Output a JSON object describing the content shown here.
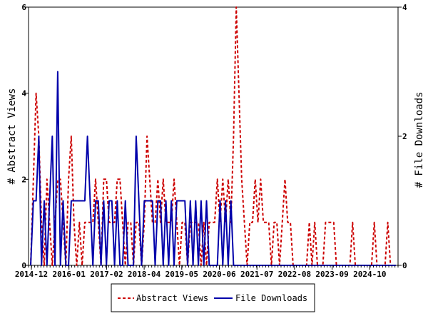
{
  "chart_data": {
    "type": "line",
    "y_left_label": "# Abstract Views",
    "y_right_label": "# File Downloads",
    "ylim_left": [
      0,
      6
    ],
    "ylim_right": [
      0,
      4
    ],
    "y_left_ticks": [
      "0",
      "2",
      "4",
      "6"
    ],
    "y_right_ticks": [
      "0",
      "2",
      "4"
    ],
    "x_tick_labels": [
      "2014-12",
      "2016-01",
      "2017-02",
      "2018-04",
      "2019-05",
      "2020-06",
      "2021-07",
      "2022-08",
      "2023-09",
      "2024-10"
    ],
    "grid": false,
    "legend_position": "bottom",
    "colors": {
      "abstract_views": "#cc0000",
      "file_downloads": "#0000aa"
    },
    "series": [
      {
        "name": "Abstract Views",
        "axis": "left",
        "style": "dashed",
        "values": [
          0,
          2,
          4,
          3,
          1,
          0,
          2,
          1,
          0,
          1,
          2,
          2,
          1,
          0,
          2,
          3,
          1,
          0,
          1,
          0,
          1,
          1,
          1,
          1,
          2,
          1,
          0,
          2,
          2,
          1,
          1,
          1,
          2,
          2,
          1,
          0,
          1,
          1,
          0,
          1,
          1,
          0,
          1,
          3,
          2,
          1,
          1,
          2,
          1,
          2,
          1,
          1,
          1,
          2,
          1,
          0,
          1,
          1,
          0,
          1,
          1,
          1,
          1,
          0,
          1,
          0,
          1,
          1,
          1,
          2,
          1,
          2,
          1,
          2,
          1,
          3,
          6,
          4,
          2,
          1,
          0,
          1,
          1,
          2,
          1,
          2,
          1,
          1,
          1,
          0,
          1,
          1,
          0,
          1,
          2,
          1,
          1,
          0,
          0,
          0,
          0,
          0,
          0,
          1,
          0,
          1,
          0,
          0,
          0,
          1,
          1,
          1,
          1,
          0,
          0,
          0,
          0,
          0,
          0,
          1,
          0,
          0,
          0,
          0,
          0,
          0,
          0,
          1,
          0,
          0,
          0,
          0,
          1,
          0,
          0,
          0
        ]
      },
      {
        "name": "File Downloads",
        "axis": "right",
        "style": "solid",
        "values": [
          0,
          1,
          1,
          2,
          0,
          1,
          0,
          1,
          2,
          0,
          3,
          0,
          1,
          0,
          0,
          1,
          1,
          1,
          1,
          1,
          1,
          2,
          1,
          0,
          1,
          1,
          0,
          1,
          0,
          1,
          1,
          0,
          1,
          0,
          0,
          1,
          0,
          0,
          0,
          2,
          1,
          0,
          1,
          1,
          1,
          1,
          0,
          1,
          1,
          0,
          1,
          0,
          1,
          0,
          1,
          1,
          1,
          1,
          0,
          1,
          0,
          1,
          0,
          1,
          0,
          1,
          0,
          0,
          0,
          0,
          1,
          0,
          1,
          0,
          1,
          0,
          0,
          0,
          0,
          0,
          0,
          0,
          0,
          0,
          0,
          0,
          0,
          0,
          0,
          0,
          0,
          0,
          0,
          0,
          0,
          0,
          0,
          0,
          0,
          0,
          0,
          0,
          0,
          0,
          0,
          0,
          0,
          0,
          0,
          0,
          0,
          0,
          0,
          0,
          0,
          0,
          0,
          0,
          0,
          0,
          0,
          0,
          0,
          0,
          0,
          0,
          0,
          0,
          0,
          0,
          0,
          0,
          0,
          0,
          0,
          0
        ]
      }
    ]
  }
}
